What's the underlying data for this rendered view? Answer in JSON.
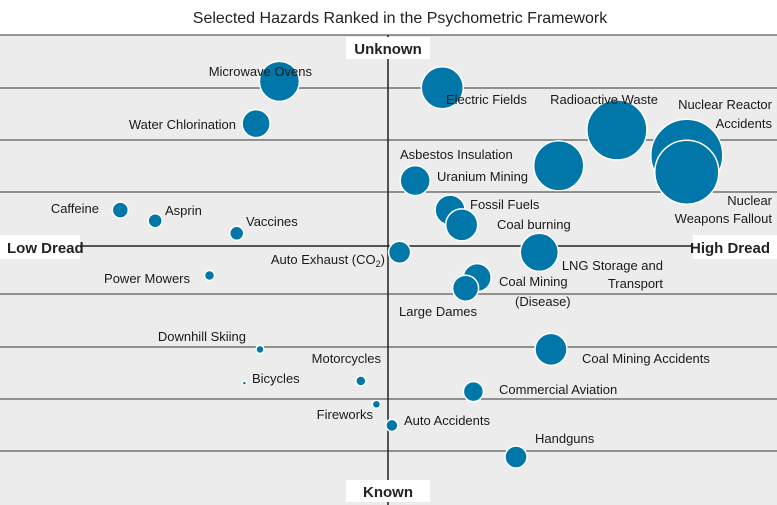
{
  "chart_data": {
    "type": "scatter",
    "title": "Selected Hazards Ranked in the Psychometric Framework",
    "axis_labels": {
      "top": "Unknown",
      "bottom": "Known",
      "left": "Low Dread",
      "right": "High Dread"
    },
    "grid": true,
    "colors": {
      "bubble": "#0077a8",
      "plot_bg": "#ececec",
      "grid": "#333333"
    },
    "points": [
      {
        "label": "Microwave Ovens",
        "x": -0.28,
        "y": 0.78,
        "size": 20
      },
      {
        "label": "Electric Fields",
        "x": 0.14,
        "y": 0.75,
        "size": 21
      },
      {
        "label": "Radioactive Waste",
        "x": 0.59,
        "y": 0.55,
        "size": 30
      },
      {
        "label": "Nuclear Reactor Accidents",
        "x": 0.77,
        "y": 0.43,
        "size": 36
      },
      {
        "label": "Water Chlorination",
        "x": -0.34,
        "y": 0.58,
        "size": 14
      },
      {
        "label": "Asbestos Insulation",
        "x": 0.44,
        "y": 0.38,
        "size": 25
      },
      {
        "label": "Uranium Mining",
        "x": 0.07,
        "y": 0.31,
        "size": 15
      },
      {
        "label": "Nuclear Weapons Fallout",
        "x": 0.77,
        "y": 0.35,
        "size": 32
      },
      {
        "label": "Caffeine",
        "x": -0.69,
        "y": 0.17,
        "size": 8
      },
      {
        "label": "Asprin",
        "x": -0.6,
        "y": 0.12,
        "size": 7
      },
      {
        "label": "Vaccines",
        "x": -0.39,
        "y": 0.06,
        "size": 7
      },
      {
        "label": "Fossil Fuels",
        "x": 0.16,
        "y": 0.17,
        "size": 15
      },
      {
        "label": "Coal burning",
        "x": 0.19,
        "y": 0.1,
        "size": 16
      },
      {
        "label": "Auto Exhaust (CO2)",
        "x": 0.03,
        "y": -0.03,
        "size": 11
      },
      {
        "label": "LNG Storage and Transport",
        "x": 0.39,
        "y": -0.03,
        "size": 19
      },
      {
        "label": "Power Mowers",
        "x": -0.46,
        "y": -0.14,
        "size": 5
      },
      {
        "label": "Coal Mining (Disease)",
        "x": 0.23,
        "y": -0.15,
        "size": 14
      },
      {
        "label": "Large Dames",
        "x": 0.2,
        "y": -0.2,
        "size": 13
      },
      {
        "label": "Downhill Skiing",
        "x": -0.33,
        "y": -0.49,
        "size": 4
      },
      {
        "label": "Coal Mining Accidents",
        "x": 0.42,
        "y": -0.49,
        "size": 16
      },
      {
        "label": "Motorcycles",
        "x": -0.07,
        "y": -0.64,
        "size": 5
      },
      {
        "label": "Bicycles",
        "x": -0.37,
        "y": -0.65,
        "size": 2
      },
      {
        "label": "Commercial Aviation",
        "x": 0.22,
        "y": -0.69,
        "size": 10
      },
      {
        "label": "Fireworks",
        "x": -0.03,
        "y": -0.75,
        "size": 4
      },
      {
        "label": "Auto Accidents",
        "x": 0.01,
        "y": -0.85,
        "size": 6
      },
      {
        "label": "Handguns",
        "x": 0.33,
        "y": -1.0,
        "size": 11
      }
    ]
  }
}
